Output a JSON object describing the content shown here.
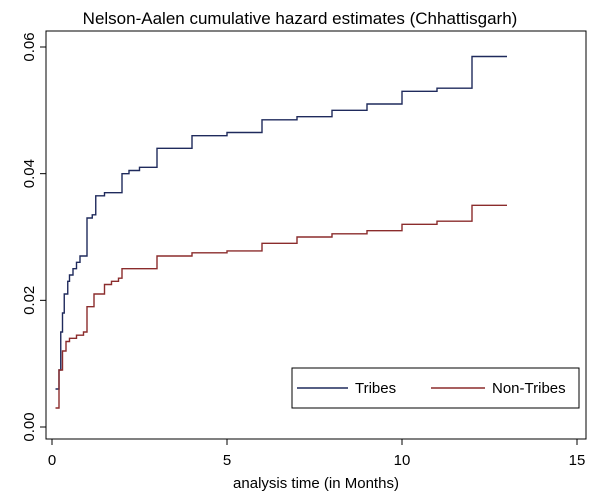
{
  "chart_data": {
    "type": "line",
    "title": "Nelson-Aalen cumulative hazard estimates (Chhattisgarh)",
    "xlabel": "analysis time (in Months)",
    "ylabel": "",
    "xlim": [
      0,
      15
    ],
    "ylim": [
      0,
      0.06
    ],
    "x_ticks": [
      0,
      5,
      10,
      15
    ],
    "x_tick_labels": [
      "0",
      "5",
      "10",
      "15"
    ],
    "y_ticks": [
      0,
      0.02,
      0.04,
      0.06
    ],
    "y_tick_labels": [
      "0.00",
      "0.02",
      "0.04",
      "0.06"
    ],
    "grid": false,
    "legend_position": "bottom-right",
    "step": true,
    "series": [
      {
        "name": "Tribes",
        "color": "#1f2a5c",
        "points": [
          [
            0.1,
            0.006
          ],
          [
            0.2,
            0.009
          ],
          [
            0.25,
            0.015
          ],
          [
            0.3,
            0.018
          ],
          [
            0.35,
            0.021
          ],
          [
            0.45,
            0.023
          ],
          [
            0.5,
            0.024
          ],
          [
            0.6,
            0.025
          ],
          [
            0.7,
            0.026
          ],
          [
            0.8,
            0.027
          ],
          [
            1.0,
            0.033
          ],
          [
            1.15,
            0.0335
          ],
          [
            1.25,
            0.0365
          ],
          [
            1.5,
            0.037
          ],
          [
            1.7,
            0.037
          ],
          [
            2.0,
            0.04
          ],
          [
            2.2,
            0.0405
          ],
          [
            2.5,
            0.041
          ],
          [
            3.0,
            0.044
          ],
          [
            4.0,
            0.046
          ],
          [
            5.0,
            0.0465
          ],
          [
            6.0,
            0.0485
          ],
          [
            7.0,
            0.049
          ],
          [
            8.0,
            0.05
          ],
          [
            9.0,
            0.051
          ],
          [
            10.0,
            0.053
          ],
          [
            11.0,
            0.0535
          ],
          [
            12.0,
            0.0585
          ],
          [
            13.0,
            0.0585
          ]
        ]
      },
      {
        "name": "Non-Tribes",
        "color": "#8b2c2c",
        "points": [
          [
            0.1,
            0.003
          ],
          [
            0.2,
            0.009
          ],
          [
            0.3,
            0.012
          ],
          [
            0.4,
            0.0135
          ],
          [
            0.5,
            0.014
          ],
          [
            0.7,
            0.0145
          ],
          [
            0.9,
            0.015
          ],
          [
            1.0,
            0.019
          ],
          [
            1.2,
            0.021
          ],
          [
            1.5,
            0.0225
          ],
          [
            1.7,
            0.023
          ],
          [
            1.9,
            0.0235
          ],
          [
            2.0,
            0.025
          ],
          [
            3.0,
            0.027
          ],
          [
            4.0,
            0.0275
          ],
          [
            5.0,
            0.0278
          ],
          [
            6.0,
            0.029
          ],
          [
            7.0,
            0.03
          ],
          [
            8.0,
            0.0305
          ],
          [
            9.0,
            0.031
          ],
          [
            10.0,
            0.032
          ],
          [
            11.0,
            0.0325
          ],
          [
            12.0,
            0.035
          ],
          [
            13.0,
            0.035
          ]
        ]
      }
    ]
  }
}
